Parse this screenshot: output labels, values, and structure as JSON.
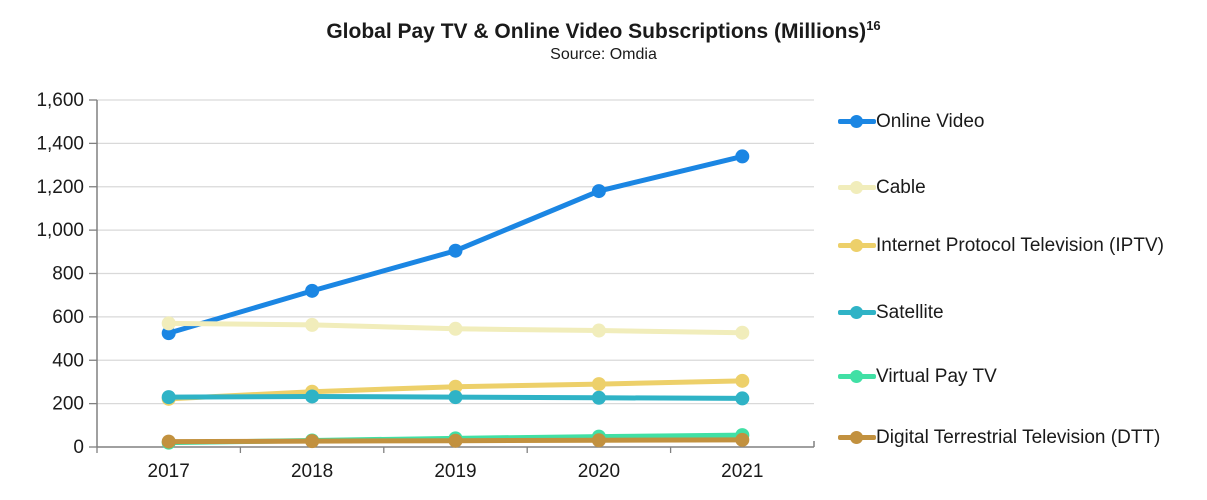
{
  "header": {
    "title": "Global Pay TV & Online Video Subscriptions (Millions)",
    "title_superscript": "16",
    "subtitle": "Source: Omdia"
  },
  "chart_data": {
    "type": "line",
    "title": "Global Pay TV & Online Video Subscriptions (Millions)",
    "subtitle": "Source: Omdia",
    "xlabel": "",
    "ylabel": "",
    "categories": [
      "2017",
      "2018",
      "2019",
      "2020",
      "2021"
    ],
    "series": [
      {
        "name": "Online Video",
        "color": "#1B86E3",
        "values": [
          525,
          720,
          905,
          1180,
          1340
        ]
      },
      {
        "name": "Cable",
        "color": "#F1EDBB",
        "values": [
          570,
          563,
          545,
          537,
          527
        ]
      },
      {
        "name": "Internet Protocol Television (IPTV)",
        "color": "#EDD06A",
        "values": [
          222,
          255,
          278,
          290,
          305
        ]
      },
      {
        "name": "Satellite",
        "color": "#2FB3C6",
        "values": [
          230,
          233,
          230,
          227,
          224
        ]
      },
      {
        "name": "Virtual Pay TV",
        "color": "#41E0A5",
        "values": [
          20,
          30,
          40,
          48,
          55
        ]
      },
      {
        "name": "Digital Terrestrial Television (DTT)",
        "color": "#C2913F",
        "values": [
          25,
          27,
          29,
          31,
          33
        ]
      }
    ],
    "ylim": [
      0,
      1600
    ],
    "y_tick_step": 200,
    "y_tick_labels": [
      "0",
      "200",
      "400",
      "600",
      "800",
      "1,000",
      "1,200",
      "1,400",
      "1,600"
    ],
    "grid": true,
    "legend_position": "right",
    "colors": {
      "axis": "#808080",
      "gridline": "#D9D9D9",
      "text": "#1a1a1a"
    }
  }
}
